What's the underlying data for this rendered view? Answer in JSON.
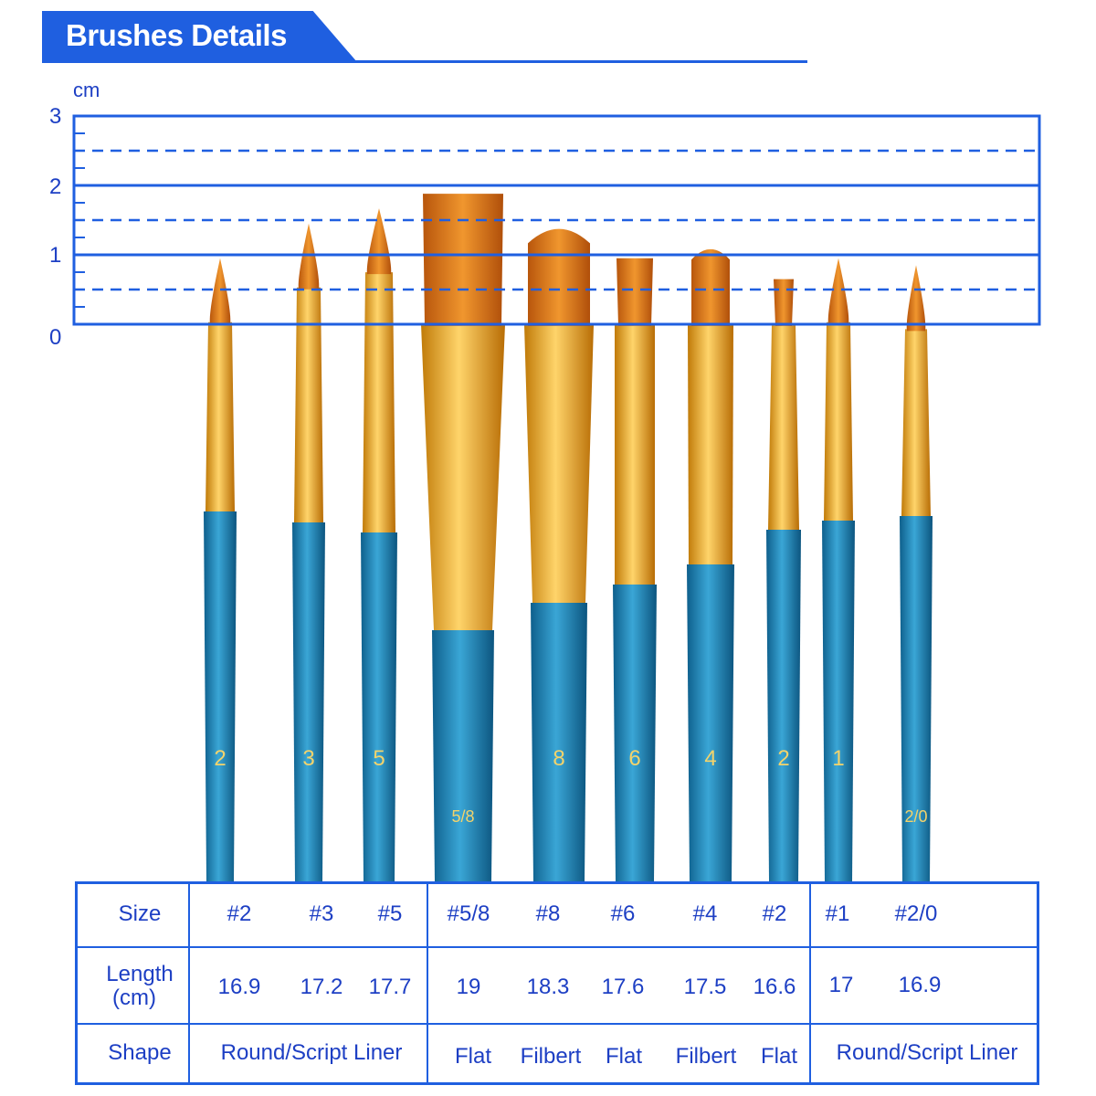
{
  "header": {
    "title": "Brushes Details"
  },
  "ruler": {
    "unit": "cm",
    "ticks": [
      "0",
      "1",
      "2",
      "3"
    ]
  },
  "brushes": [
    {
      "size": "#2",
      "handle_label": "2",
      "type": "round",
      "tip_height_cm": 0.95
    },
    {
      "size": "#3",
      "handle_label": "3",
      "type": "round",
      "tip_height_cm": 1.45
    },
    {
      "size": "#5",
      "handle_label": "5",
      "type": "round",
      "tip_height_cm": 1.67
    },
    {
      "size": "#5/8",
      "handle_label": "5/8",
      "type": "flat",
      "tip_height_cm": 1.88
    },
    {
      "size": "#8",
      "handle_label": "8",
      "type": "filbert",
      "tip_height_cm": 1.5
    },
    {
      "size": "#6",
      "handle_label": "6",
      "type": "flat",
      "tip_height_cm": 0.95
    },
    {
      "size": "#4",
      "handle_label": "4",
      "type": "filbert",
      "tip_height_cm": 1.15
    },
    {
      "size": "#2",
      "handle_label": "2",
      "type": "flat",
      "tip_height_cm": 0.65
    },
    {
      "size": "#1",
      "handle_label": "1",
      "type": "round",
      "tip_height_cm": 0.95
    },
    {
      "size": "#2/0",
      "handle_label": "2/0",
      "type": "round",
      "tip_height_cm": 0.85
    }
  ],
  "table": {
    "row_labels": {
      "size": "Size",
      "length": "Length\n(cm)",
      "length_line1": "Length",
      "length_line2": "(cm)",
      "shape": "Shape"
    },
    "sizes": [
      "#2",
      "#3",
      "#5",
      "#5/8",
      "#8",
      "#6",
      "#4",
      "#2",
      "#1",
      "#2/0"
    ],
    "lengths": [
      "16.9",
      "17.2",
      "17.7",
      "19",
      "18.3",
      "17.6",
      "17.5",
      "16.6",
      "17",
      "16.9"
    ],
    "shapes": [
      "Round/Script Liner",
      "Flat",
      "Filbert",
      "Flat",
      "Filbert",
      "Flat",
      "Round/Script Liner"
    ]
  },
  "colors": {
    "accent": "#1f5fe0",
    "text": "#1d3fc4",
    "handle": "#1f86b8",
    "ferrule": "#e8a317",
    "bristle": "#d9741a"
  }
}
